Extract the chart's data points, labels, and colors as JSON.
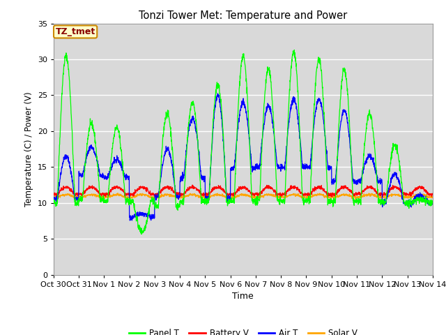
{
  "title": "Tonzi Tower Met: Temperature and Power",
  "xlabel": "Time",
  "ylabel": "Temperature (C) / Power (V)",
  "ylim": [
    0,
    35
  ],
  "yticks": [
    0,
    5,
    10,
    15,
    20,
    25,
    30,
    35
  ],
  "annotation": "TZ_tmet",
  "plot_bg_color": "#d9d9d9",
  "fig_bg_color": "#ffffff",
  "grid_color": "#ffffff",
  "colors": {
    "Panel T": "#00ff00",
    "Battery V": "#ff0000",
    "Air T": "#0000ff",
    "Solar V": "#ffa500"
  },
  "x_tick_labels": [
    "Oct 30",
    "Oct 31",
    "Nov 1",
    "Nov 2",
    "Nov 3",
    "Nov 4",
    "Nov 5",
    "Nov 6",
    "Nov 7",
    "Nov 8",
    "Nov 9",
    "Nov 10",
    "Nov 11",
    "Nov 12",
    "Nov 13",
    "Nov 14"
  ],
  "panel_peaks": [
    30.5,
    21.0,
    20.5,
    6.0,
    22.5,
    24.0,
    26.5,
    30.4,
    28.6,
    31.0,
    30.0,
    28.5,
    22.5,
    18.0,
    10.5
  ],
  "panel_base": 10.0,
  "panel_night": [
    10.0,
    10.5,
    10.2,
    10.3,
    9.5,
    10.2,
    10.1,
    10.2,
    10.3,
    10.2,
    10.3,
    10.2,
    10.2,
    10.1,
    10.0
  ],
  "air_peaks": [
    16.5,
    17.8,
    16.0,
    8.5,
    17.5,
    21.8,
    25.0,
    24.0,
    23.5,
    24.4,
    24.4,
    23.0,
    16.5,
    14.0,
    11.0
  ],
  "air_night": [
    10.5,
    13.8,
    13.5,
    8.0,
    10.9,
    13.5,
    10.8,
    14.8,
    15.0,
    15.0,
    15.0,
    13.0,
    13.0,
    10.0,
    10.0
  ],
  "battery_base": 11.2,
  "solar_base": 10.8,
  "n_days": 15,
  "pts_per_day": 144
}
